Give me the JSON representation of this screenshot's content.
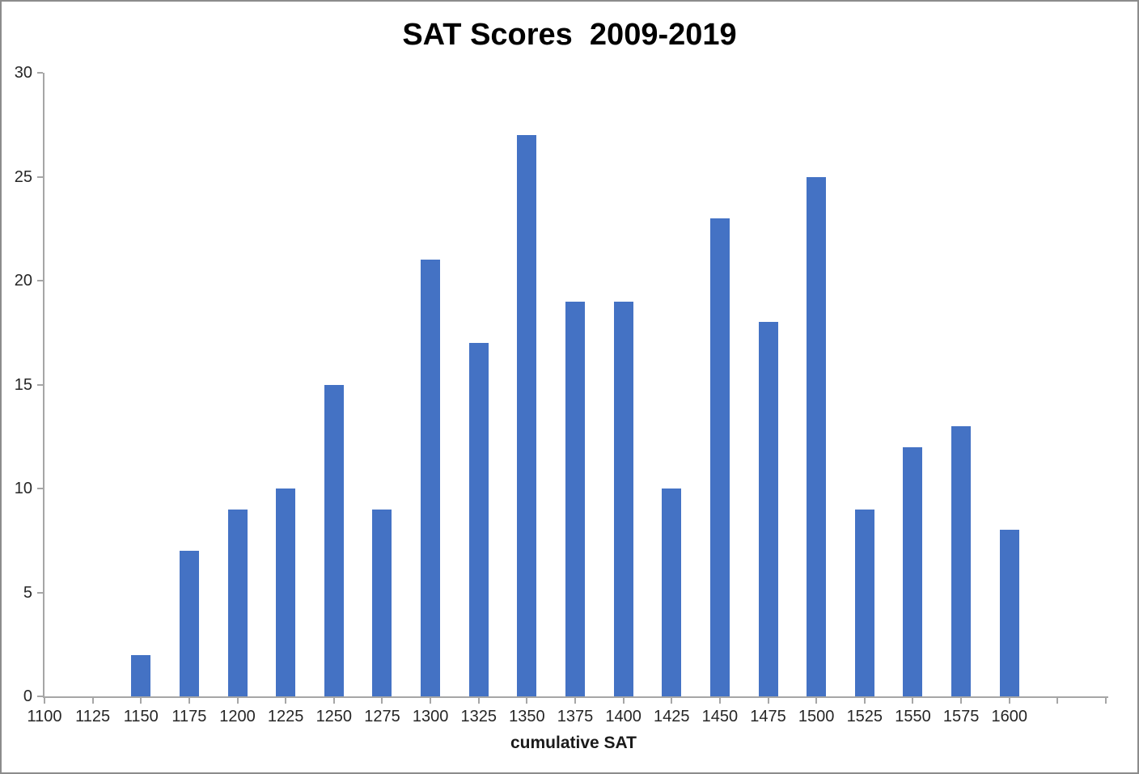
{
  "chart_data": {
    "type": "bar",
    "title": "SAT Scores  2009-2019",
    "xlabel": "cumulative SAT",
    "ylabel": "",
    "categories": [
      "1100",
      "1125",
      "1150",
      "1175",
      "1200",
      "1225",
      "1250",
      "1275",
      "1300",
      "1325",
      "1350",
      "1375",
      "1400",
      "1425",
      "1450",
      "1475",
      "1500",
      "1525",
      "1550",
      "1575",
      "1600"
    ],
    "values": [
      0,
      0,
      2,
      7,
      9,
      10,
      15,
      9,
      21,
      17,
      27,
      19,
      19,
      10,
      23,
      18,
      25,
      9,
      12,
      13,
      8
    ],
    "y_ticks": [
      0,
      5,
      10,
      15,
      20,
      25,
      30
    ],
    "ylim": [
      0,
      30
    ],
    "grid": false,
    "legend": false,
    "trailing_unlabeled_ticks": 2,
    "bar_color": "#4472C4",
    "axis_color": "#A6A6A6",
    "tick_label_color": "#262626",
    "title_color": "#000000",
    "background_color": "#FFFFFF",
    "border_color": "#8C8C8C"
  }
}
